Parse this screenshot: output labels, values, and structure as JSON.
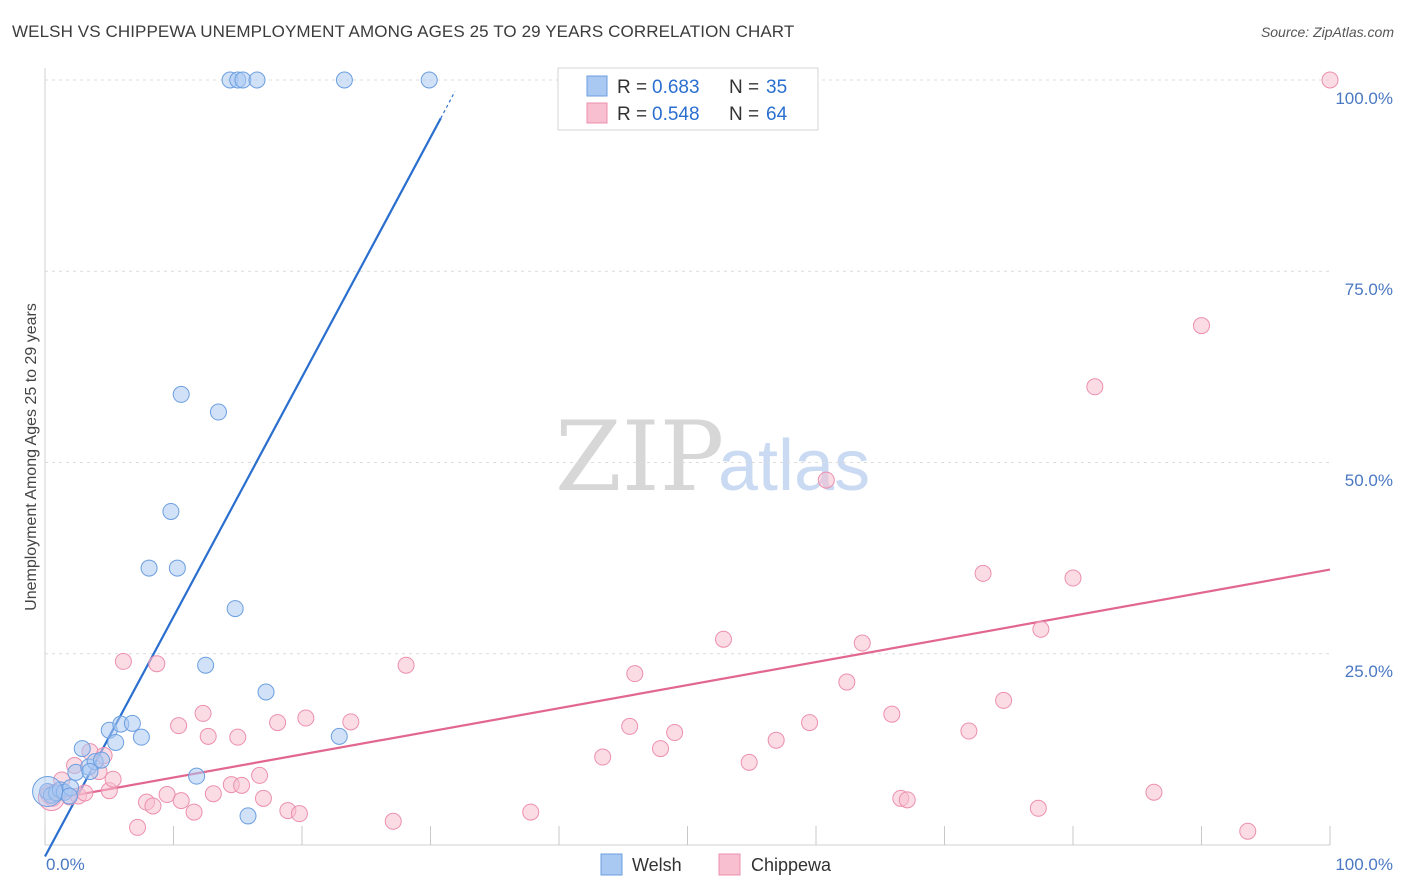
{
  "header": {
    "title": "WELSH VS CHIPPEWA UNEMPLOYMENT AMONG AGES 25 TO 29 YEARS CORRELATION CHART",
    "source": "Source: ZipAtlas.com"
  },
  "watermark": {
    "zip": "ZIP",
    "atlas": "atlas"
  },
  "colors": {
    "welsh_fill": "#a9c8f2",
    "welsh_stroke": "#6c9fe0",
    "welsh_line": "#2a6fcf",
    "chippewa_fill": "#f7bfd0",
    "chippewa_stroke": "#ec8fae",
    "chippewa_line": "#e2678f",
    "axis_text": "#4a78c2",
    "grid": "#dcdcdc"
  },
  "legend": {
    "rows": [
      {
        "r_label": "R = ",
        "r_value": "0.683",
        "n_label": "N = ",
        "n_value": "35"
      },
      {
        "r_label": "R = ",
        "r_value": "0.548",
        "n_label": "N = ",
        "n_value": "64"
      }
    ]
  },
  "bottom_legend": {
    "items": [
      "Welsh",
      "Chippewa"
    ]
  },
  "chart_data": {
    "type": "scatter",
    "title": "WELSH VS CHIPPEWA UNEMPLOYMENT AMONG AGES 25 TO 29 YEARS CORRELATION CHART",
    "xlabel": "",
    "ylabel": "Unemployment Among Ages 25 to 29 years",
    "xlim": [
      0,
      100
    ],
    "ylim": [
      0,
      100
    ],
    "x_tick_labels": [
      "0.0%",
      "100.0%"
    ],
    "y_tick_labels": [
      "100.0%",
      "75.0%",
      "50.0%",
      "25.0%"
    ],
    "y_ticks": [
      100,
      75,
      50,
      25
    ],
    "grid": true,
    "legend_position": "top-center",
    "series": [
      {
        "name": "Welsh",
        "R": 0.683,
        "N": 35,
        "trend": {
          "x": [
            0,
            30.8
          ],
          "y": [
            -1.5,
            95
          ]
        },
        "trend_extension": {
          "x": [
            30.8,
            31.9
          ],
          "y": [
            95,
            98.5
          ]
        },
        "points": [
          [
            0.2,
            7.0
          ],
          [
            0.5,
            6.5
          ],
          [
            0.9,
            6.8
          ],
          [
            1.2,
            7.2
          ],
          [
            1.5,
            6.9
          ],
          [
            2.0,
            7.5
          ],
          [
            2.4,
            9.5
          ],
          [
            2.9,
            12.6
          ],
          [
            3.4,
            10.2
          ],
          [
            3.9,
            10.9
          ],
          [
            4.4,
            11.1
          ],
          [
            5.0,
            15.0
          ],
          [
            5.5,
            13.4
          ],
          [
            5.9,
            15.8
          ],
          [
            6.8,
            15.9
          ],
          [
            7.5,
            14.1
          ],
          [
            8.1,
            36.2
          ],
          [
            9.8,
            43.6
          ],
          [
            10.3,
            36.2
          ],
          [
            10.6,
            58.9
          ],
          [
            11.8,
            9.0
          ],
          [
            12.5,
            23.5
          ],
          [
            13.5,
            56.6
          ],
          [
            14.4,
            100.0
          ],
          [
            14.8,
            30.9
          ],
          [
            15.0,
            100.0
          ],
          [
            15.4,
            100.0
          ],
          [
            15.8,
            3.8
          ],
          [
            16.5,
            100.0
          ],
          [
            17.2,
            20.0
          ],
          [
            22.9,
            14.2
          ],
          [
            23.3,
            100.0
          ],
          [
            29.9,
            100.0
          ],
          [
            1.9,
            6.4
          ],
          [
            3.5,
            9.6
          ]
        ]
      },
      {
        "name": "Chippewa",
        "R": 0.548,
        "N": 64,
        "trend": {
          "x": [
            0,
            100
          ],
          "y": [
            5.8,
            36.0
          ]
        },
        "points": [
          [
            0.3,
            6.5
          ],
          [
            0.8,
            6.9
          ],
          [
            1.3,
            8.5
          ],
          [
            1.9,
            6.3
          ],
          [
            2.3,
            10.4
          ],
          [
            2.6,
            6.4
          ],
          [
            3.1,
            6.8
          ],
          [
            3.5,
            12.2
          ],
          [
            4.2,
            9.6
          ],
          [
            4.6,
            11.7
          ],
          [
            5.0,
            7.1
          ],
          [
            5.3,
            8.6
          ],
          [
            6.1,
            24.0
          ],
          [
            7.2,
            2.3
          ],
          [
            7.9,
            5.6
          ],
          [
            8.4,
            5.1
          ],
          [
            8.7,
            23.7
          ],
          [
            9.5,
            6.6
          ],
          [
            10.4,
            15.6
          ],
          [
            10.6,
            5.8
          ],
          [
            11.6,
            4.3
          ],
          [
            12.3,
            17.2
          ],
          [
            12.7,
            14.2
          ],
          [
            13.1,
            6.7
          ],
          [
            14.5,
            7.9
          ],
          [
            15.0,
            14.1
          ],
          [
            15.3,
            7.8
          ],
          [
            16.7,
            9.1
          ],
          [
            17.0,
            6.1
          ],
          [
            18.1,
            16.0
          ],
          [
            18.9,
            4.5
          ],
          [
            19.8,
            4.1
          ],
          [
            20.3,
            16.6
          ],
          [
            23.8,
            16.1
          ],
          [
            27.1,
            3.1
          ],
          [
            28.1,
            23.5
          ],
          [
            37.8,
            4.3
          ],
          [
            43.4,
            11.5
          ],
          [
            45.5,
            15.5
          ],
          [
            45.9,
            22.4
          ],
          [
            47.9,
            12.6
          ],
          [
            49.0,
            14.7
          ],
          [
            52.8,
            26.9
          ],
          [
            54.8,
            10.8
          ],
          [
            56.9,
            13.7
          ],
          [
            59.5,
            16.0
          ],
          [
            60.8,
            47.7
          ],
          [
            62.4,
            21.3
          ],
          [
            63.6,
            26.4
          ],
          [
            65.9,
            17.1
          ],
          [
            66.6,
            6.1
          ],
          [
            67.1,
            5.9
          ],
          [
            71.9,
            14.9
          ],
          [
            73.0,
            35.5
          ],
          [
            74.6,
            18.9
          ],
          [
            77.3,
            4.8
          ],
          [
            77.5,
            28.2
          ],
          [
            80.0,
            34.9
          ],
          [
            81.7,
            59.9
          ],
          [
            86.3,
            6.9
          ],
          [
            90.0,
            67.9
          ],
          [
            93.6,
            1.8
          ],
          [
            100.0,
            100.0
          ],
          [
            0.6,
            6.1
          ]
        ]
      }
    ]
  }
}
